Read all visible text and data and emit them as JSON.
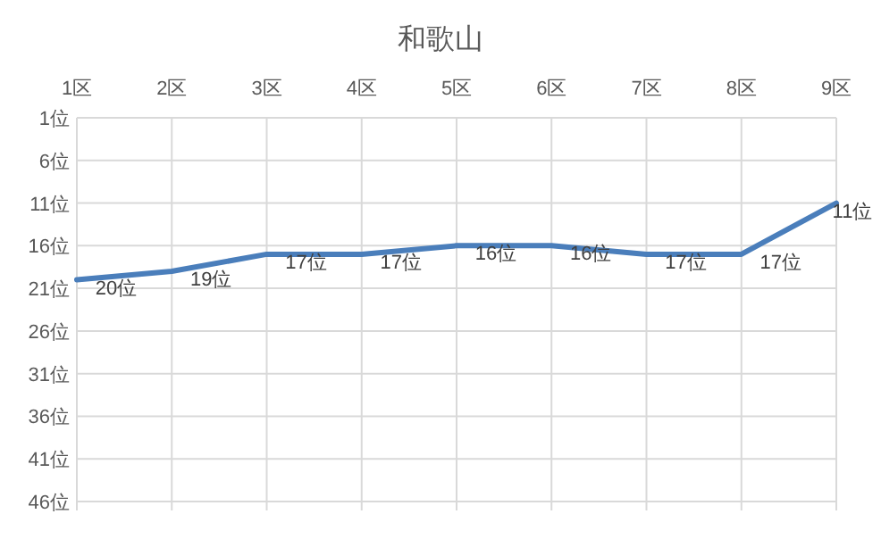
{
  "chart_data": {
    "type": "line",
    "title": "和歌山",
    "categories": [
      "1区",
      "2区",
      "3区",
      "4区",
      "5区",
      "6区",
      "7区",
      "8区",
      "9区"
    ],
    "values": [
      20,
      19,
      17,
      17,
      16,
      16,
      17,
      17,
      11
    ],
    "value_labels": [
      "20位",
      "19位",
      "17位",
      "17位",
      "16位",
      "16位",
      "17位",
      "17位",
      "11位"
    ],
    "color": "#4a7ebb",
    "ylim": [
      46,
      1
    ],
    "yticks": [
      {
        "value": 1,
        "label": "1位"
      },
      {
        "value": 6,
        "label": "6位"
      },
      {
        "value": 11,
        "label": "11位"
      },
      {
        "value": 16,
        "label": "16位"
      },
      {
        "value": 21,
        "label": "21位"
      },
      {
        "value": 26,
        "label": "26位"
      },
      {
        "value": 31,
        "label": "31位"
      },
      {
        "value": 36,
        "label": "36位"
      },
      {
        "value": 41,
        "label": "41位"
      },
      {
        "value": 46,
        "label": "46位"
      }
    ],
    "grid": true,
    "marker": "none",
    "line_style": "solid"
  }
}
